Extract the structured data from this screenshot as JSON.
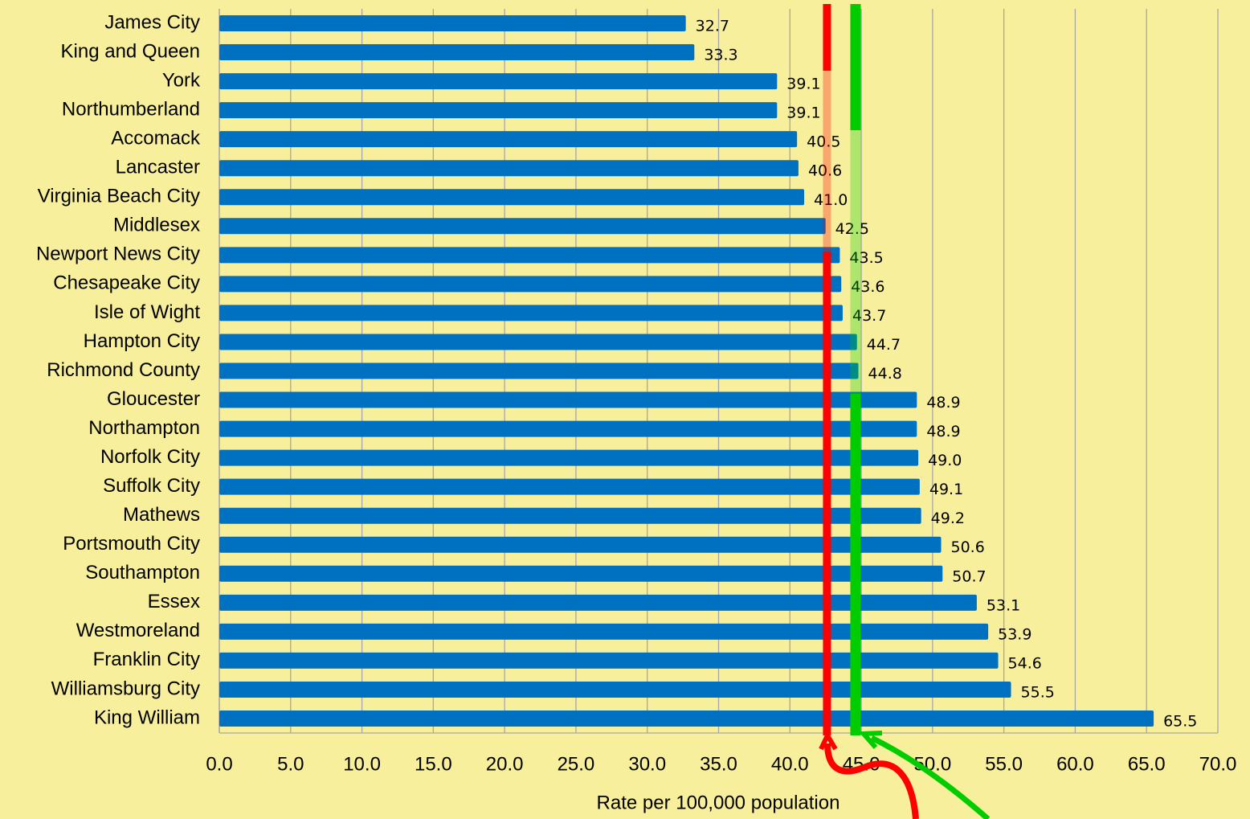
{
  "chart_data": {
    "type": "barh",
    "categories": [
      "James City",
      "King and Queen",
      "York",
      "Northumberland",
      "Accomack",
      "Lancaster",
      "Virginia Beach City",
      "Middlesex",
      "Newport News City",
      "Chesapeake City",
      "Isle of Wight",
      "Hampton City",
      "Richmond County",
      "Gloucester",
      "Northampton",
      "Norfolk City",
      "Suffolk City",
      "Mathews",
      "Portsmouth City",
      "Southampton",
      "Essex",
      "Westmoreland",
      "Franklin City",
      "Williamsburg City",
      "King William"
    ],
    "values": [
      32.7,
      33.3,
      39.1,
      39.1,
      40.5,
      40.6,
      41.0,
      42.5,
      43.5,
      43.6,
      43.7,
      44.7,
      44.8,
      48.9,
      48.9,
      49.0,
      49.1,
      49.2,
      50.6,
      50.7,
      53.1,
      53.9,
      54.6,
      55.5,
      65.5
    ],
    "value_labels": [
      "32.7",
      "33.3",
      "39.1",
      "39.1",
      "40.5",
      "40.6",
      "41.0",
      "42.5",
      "43.5",
      "43.6",
      "43.7",
      "44.7",
      "44.8",
      "48.9",
      "48.9",
      "49.0",
      "49.1",
      "49.2",
      "50.6",
      "50.7",
      "53.1",
      "53.9",
      "54.6",
      "55.5",
      "65.5"
    ],
    "color": "#0070c0",
    "xlabel": "Rate per 100,000 population",
    "xlim": [
      0,
      70
    ],
    "xticks": [
      {
        "value": 0,
        "label": "0.0"
      },
      {
        "value": 5,
        "label": "5.0"
      },
      {
        "value": 10,
        "label": "10.0"
      },
      {
        "value": 15,
        "label": "15.0"
      },
      {
        "value": 20,
        "label": "20.0"
      },
      {
        "value": 25,
        "label": "25.0"
      },
      {
        "value": 30,
        "label": "30.0"
      },
      {
        "value": 35,
        "label": "35.0"
      },
      {
        "value": 40,
        "label": "40.0"
      },
      {
        "value": 45,
        "label": "45.0"
      },
      {
        "value": 50,
        "label": "50.0"
      },
      {
        "value": 55,
        "label": "55.0"
      },
      {
        "value": 60,
        "label": "60.0"
      },
      {
        "value": 65,
        "label": "65.0"
      },
      {
        "value": 70,
        "label": "70.0"
      }
    ],
    "grid": true,
    "reference_lines": [
      {
        "value": 42.6,
        "color": "#ff0000"
      },
      {
        "value": 44.6,
        "color": "#00cc00"
      }
    ]
  }
}
